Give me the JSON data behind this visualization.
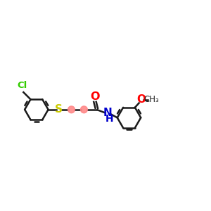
{
  "bg_color": "#ffffff",
  "line_color": "#1a1a1a",
  "cl_color": "#33cc00",
  "s_color": "#cccc00",
  "o_color": "#ff0000",
  "n_color": "#0000cc",
  "c_highlight_color": "#ff8888",
  "lw": 1.8,
  "figsize": [
    3.0,
    3.0
  ],
  "dpi": 100,
  "xlim": [
    0,
    10.2
  ],
  "ylim": [
    1.5,
    6.5
  ]
}
